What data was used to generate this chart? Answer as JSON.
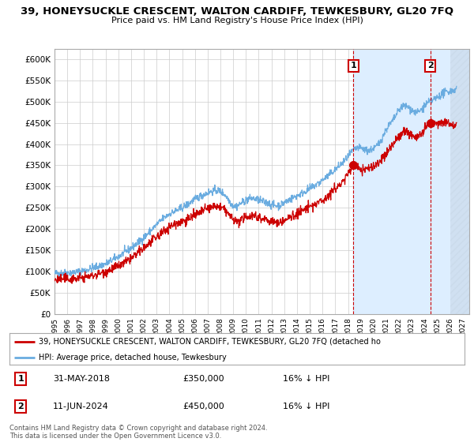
{
  "title": "39, HONEYSUCKLE CRESCENT, WALTON CARDIFF, TEWKESBURY, GL20 7FQ",
  "subtitle": "Price paid vs. HM Land Registry's House Price Index (HPI)",
  "ylabel_ticks": [
    "£0",
    "£50K",
    "£100K",
    "£150K",
    "£200K",
    "£250K",
    "£300K",
    "£350K",
    "£400K",
    "£450K",
    "£500K",
    "£550K",
    "£600K"
  ],
  "ytick_values": [
    0,
    50000,
    100000,
    150000,
    200000,
    250000,
    300000,
    350000,
    400000,
    450000,
    500000,
    550000,
    600000
  ],
  "ylim": [
    0,
    625000
  ],
  "xlim_start": 1995.0,
  "xlim_end": 2027.5,
  "sale1_x": 2018.42,
  "sale1_y": 350000,
  "sale2_x": 2024.45,
  "sale2_y": 450000,
  "hpi_color": "#6aace0",
  "price_color": "#cc0000",
  "shade_color": "#ddeeff",
  "legend_label_red": "39, HONEYSUCKLE CRESCENT, WALTON CARDIFF, TEWKESBURY, GL20 7FQ (detached ho",
  "legend_label_blue": "HPI: Average price, detached house, Tewkesbury",
  "table_row1": [
    "1",
    "31-MAY-2018",
    "£350,000",
    "16% ↓ HPI"
  ],
  "table_row2": [
    "2",
    "11-JUN-2024",
    "£450,000",
    "16% ↓ HPI"
  ],
  "copyright_text": "Contains HM Land Registry data © Crown copyright and database right 2024.\nThis data is licensed under the Open Government Licence v3.0.",
  "background_color": "#ffffff",
  "grid_color": "#cccccc"
}
